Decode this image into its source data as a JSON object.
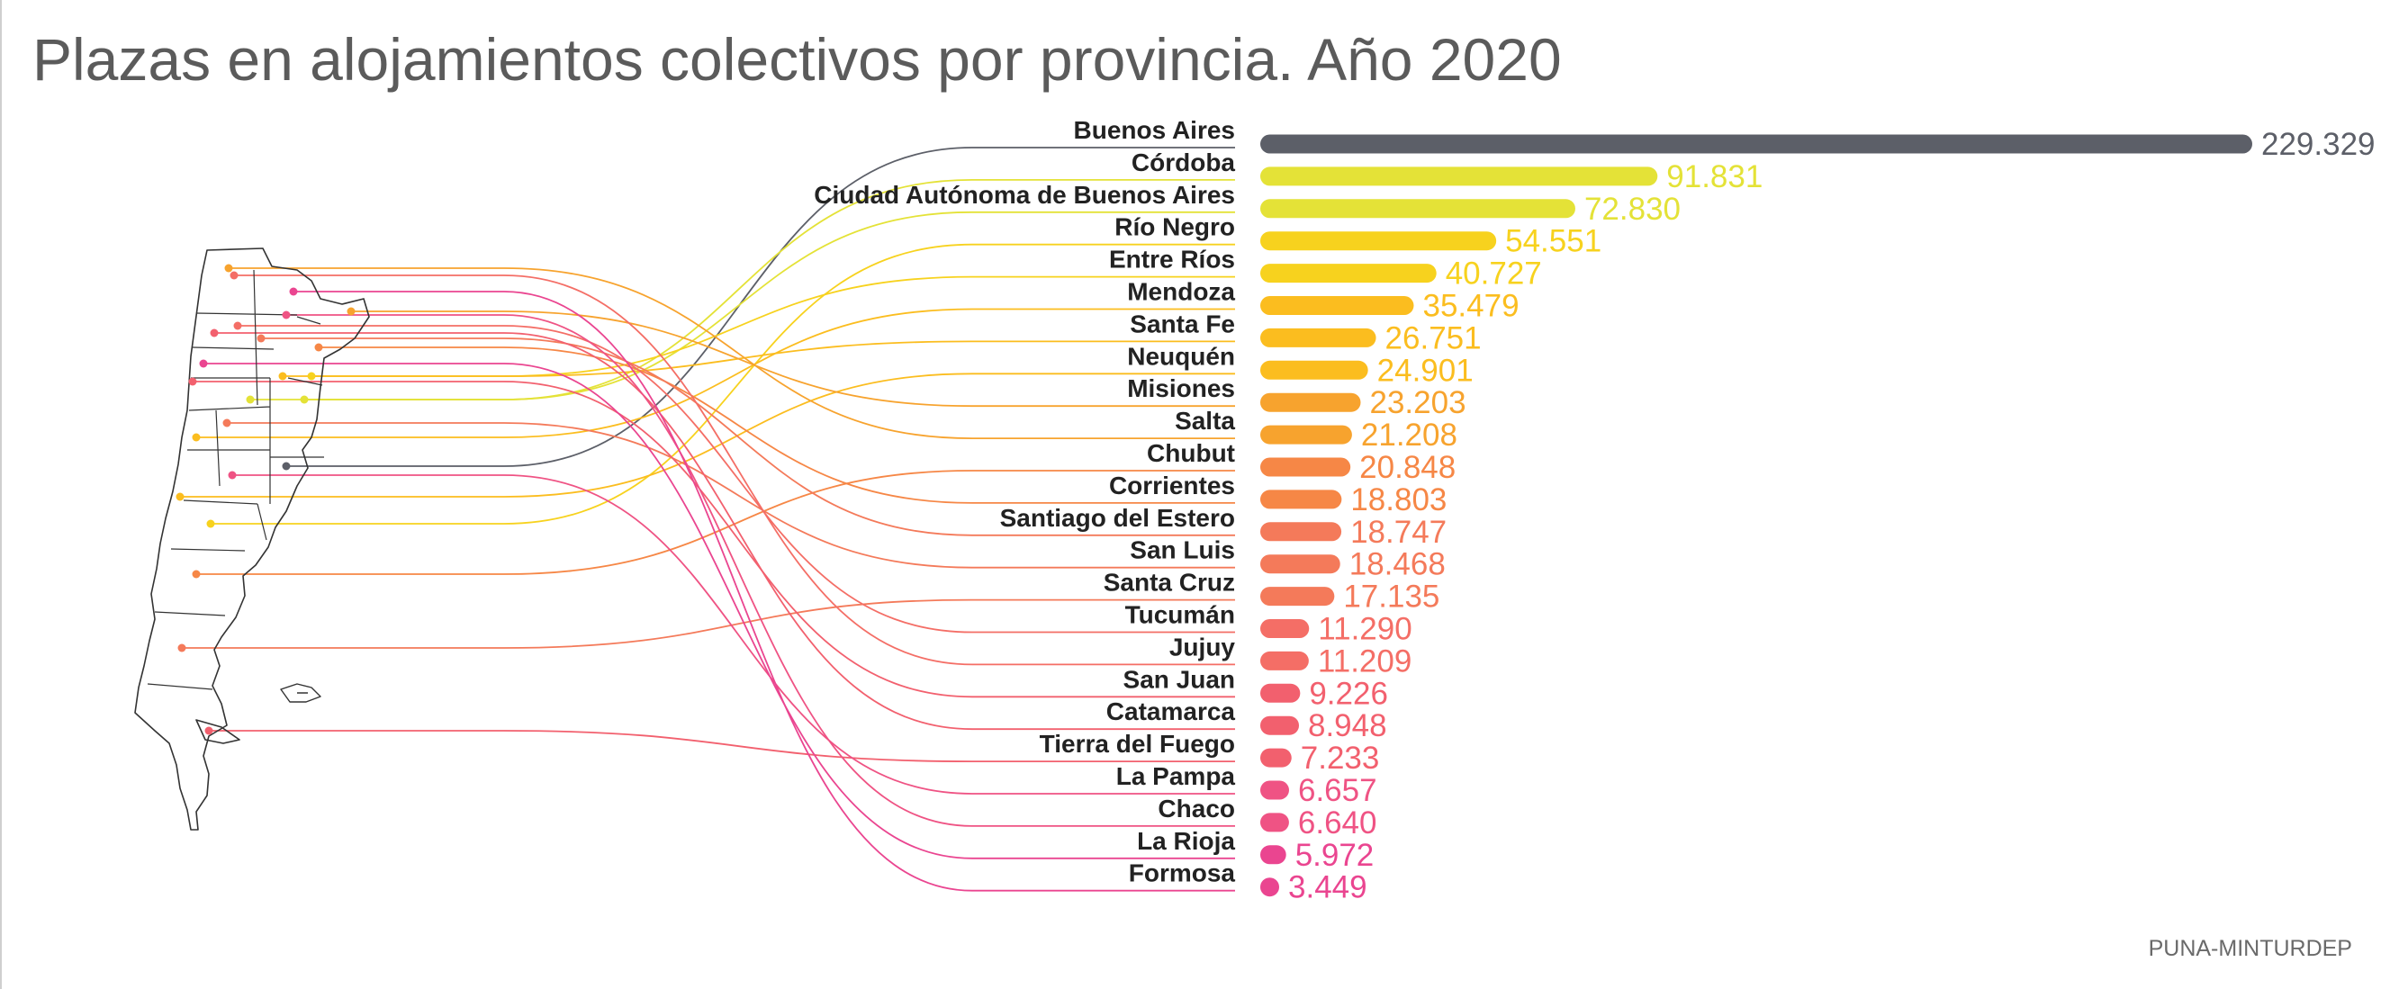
{
  "title": "Plazas en alojamientos colectivos por provincia. Año 2020",
  "source": "PUNA-MINTURDEP",
  "colors": {
    "top_bar": "#5c5f68",
    "gradient": [
      "#e4e237",
      "#f7d21e",
      "#fbbd1f",
      "#f7a32e",
      "#f68746",
      "#f47a5a",
      "#f46e66",
      "#f2606e",
      "#ef5384",
      "#ea4590"
    ],
    "map_outline": "#333333"
  },
  "chart_data": {
    "type": "bar",
    "orientation": "horizontal",
    "title": "Plazas en alojamientos colectivos por provincia. Año 2020",
    "categories": [
      "Buenos Aires",
      "Córdoba",
      "Ciudad Autónoma de Buenos Aires",
      "Río Negro",
      "Entre Ríos",
      "Mendoza",
      "Santa Fe",
      "Neuquén",
      "Misiones",
      "Salta",
      "Chubut",
      "Corrientes",
      "Santiago del Estero",
      "San Luis",
      "Santa Cruz",
      "Tucumán",
      "Jujuy",
      "San Juan",
      "Catamarca",
      "Tierra del Fuego",
      "La Pampa",
      "Chaco",
      "La Rioja",
      "Formosa"
    ],
    "values": [
      229329,
      91831,
      72830,
      54551,
      40727,
      35479,
      26751,
      24901,
      23203,
      21208,
      20848,
      18803,
      18747,
      18468,
      17135,
      11290,
      11209,
      9226,
      8948,
      7233,
      6657,
      6640,
      5972,
      3449
    ],
    "value_labels": [
      "229.329",
      "91.831",
      "72.830",
      "54.551",
      "40.727",
      "35.479",
      "26.751",
      "24.901",
      "23.203",
      "21.208",
      "20.848",
      "18.803",
      "18.747",
      "18.468",
      "17.135",
      "11.290",
      "11.209",
      "9.226",
      "8.948",
      "7.233",
      "6.657",
      "6.640",
      "5.972",
      "3.449"
    ],
    "xlabel": "",
    "ylabel": "",
    "grid": false,
    "legend": "none",
    "map": "Argentina provinces, each linked by a curve to its bar"
  }
}
